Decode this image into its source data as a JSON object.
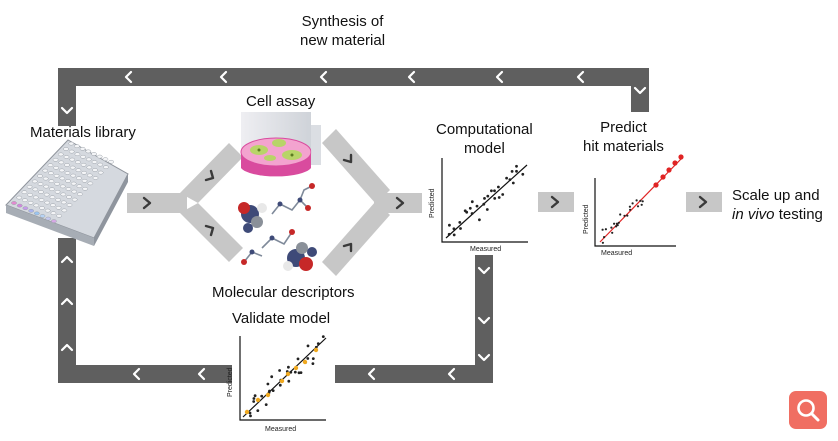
{
  "labels": {
    "synthesis": [
      "Synthesis of",
      "new material"
    ],
    "materials_library": "Materials library",
    "cell_assay": "Cell assay",
    "molecular_descriptors": "Molecular descriptors",
    "computational_model": [
      "Computational",
      "model"
    ],
    "predict": [
      "Predict",
      "hit materials"
    ],
    "scale_up": [
      "Scale up and",
      "in vivo",
      "testing"
    ],
    "validate_model": "Validate model"
  },
  "plot_axes": {
    "x_label": "Measured",
    "y_label": "Predicted"
  },
  "colors": {
    "loop_arrow": "#5f5f5f",
    "flow_arrow": "#c7c7c7",
    "hit_points": "#e02424",
    "validate_points": "#f0a91f",
    "zoom_button": "#f06e62"
  },
  "icons": {
    "zoom": "magnifier-icon"
  }
}
